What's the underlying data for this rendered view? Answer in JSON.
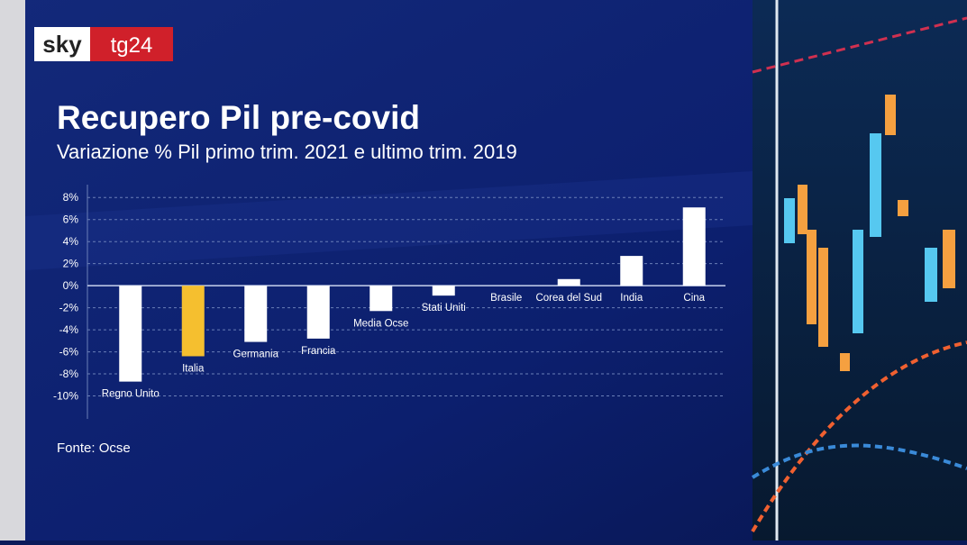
{
  "logo": {
    "sky": "sky",
    "tg24": "tg24"
  },
  "chart_data": {
    "type": "bar",
    "title": "Recupero Pil pre-covid",
    "subtitle": "Variazione % Pil primo trim. 2021 e ultimo trim. 2019",
    "source": "Fonte: Ocse",
    "categories": [
      "Regno Unito",
      "Italia",
      "Germania",
      "Francia",
      "Media Ocse",
      "Stati Uniti",
      "Brasile",
      "Corea del Sud",
      "India",
      "Cina"
    ],
    "values": [
      -8.7,
      -6.4,
      -5.1,
      -4.8,
      -2.3,
      -0.9,
      0,
      0.6,
      2.7,
      7.1
    ],
    "colors": [
      "#ffffff",
      "#f5bf2f",
      "#ffffff",
      "#ffffff",
      "#ffffff",
      "#ffffff",
      "#ffffff",
      "#ffffff",
      "#ffffff",
      "#ffffff"
    ],
    "ylim": [
      -12,
      9
    ],
    "yticks": [
      {
        "value": 8,
        "label": "8%"
      },
      {
        "value": 6,
        "label": "6%"
      },
      {
        "value": 4,
        "label": "4%"
      },
      {
        "value": 2,
        "label": "2%"
      },
      {
        "value": 0,
        "label": "0%"
      },
      {
        "value": -2,
        "label": "-2%"
      },
      {
        "value": -4,
        "label": "-4%"
      },
      {
        "value": -6,
        "label": "-6%"
      },
      {
        "value": -8,
        "label": "-8%"
      },
      {
        "value": -10,
        "label": "-10%"
      }
    ],
    "grid": true
  }
}
